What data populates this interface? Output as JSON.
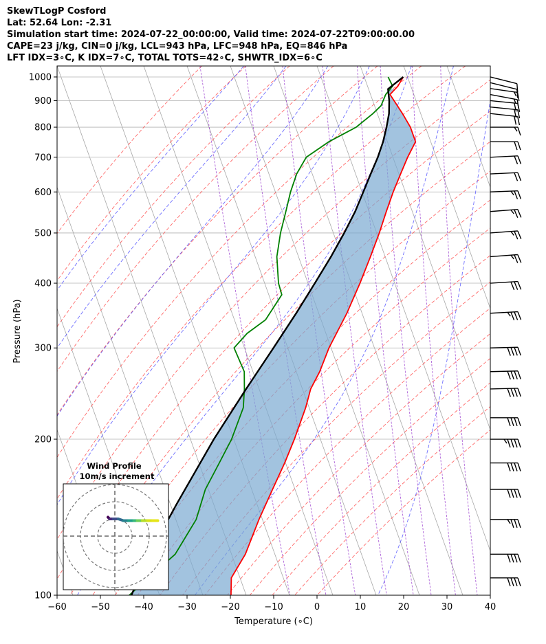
{
  "header": {
    "line1": "SkewTLogP Cosford",
    "line2": "Lat: 52.64   Lon: -2.31",
    "line3": "Simulation start time: 2024-07-22_00:00:00, Valid time: 2024-07-22T09:00:00.00",
    "line4": "CAPE=23 j/kg, CIN=0 j/kg, LCL=943 hPa, LFC=948 hPa, EQ=846 hPa",
    "line5": "LFT IDX=3∘C, K IDX=7∘C, TOTAL TOTS=42∘C, SHWTR_IDX=6∘C"
  },
  "chart_data": {
    "type": "line",
    "xlabel": "Temperature (∘C)",
    "ylabel": "Pressure (hPa)",
    "xlim": [
      -60,
      40
    ],
    "ylim": [
      1050,
      100
    ],
    "y_scale": "log",
    "x_ticks": [
      -60,
      -50,
      -40,
      -30,
      -20,
      -10,
      0,
      10,
      20,
      30,
      40
    ],
    "x_tick_labels": [
      "−60",
      "−50",
      "−40",
      "−30",
      "−20",
      "−10",
      "0",
      "10",
      "20",
      "30",
      "40"
    ],
    "y_ticks": [
      1000,
      900,
      800,
      700,
      600,
      500,
      400,
      300,
      200,
      100
    ],
    "y_tick_labels": [
      "1000",
      "900",
      "800",
      "700",
      "600",
      "500",
      "400",
      "300",
      "200",
      "100"
    ],
    "grid": true,
    "skew_lines_T0": [
      -100,
      -90,
      -80,
      -70,
      -60,
      -50,
      -40,
      -30,
      -20,
      -10,
      0,
      10,
      20,
      30,
      40
    ],
    "dry_adiabat_theta_C": [
      -30,
      -20,
      -10,
      0,
      10,
      20,
      30,
      40,
      50,
      60,
      70,
      80,
      90,
      100,
      110,
      120,
      130,
      140,
      150,
      160,
      170
    ],
    "moist_adiabat_T0_C": [
      -20,
      -10,
      0,
      10,
      20,
      30,
      40
    ],
    "mixing_ratio_gkg": [
      0.4,
      1,
      2,
      4,
      7,
      10,
      16,
      24
    ],
    "series": [
      {
        "name": "",
        "color": "#ff0000",
        "p": [
          1000,
          960,
          925,
          850,
          800,
          750,
          700,
          650,
          600,
          550,
          500,
          450,
          400,
          350,
          300,
          270,
          250,
          230,
          200,
          180,
          160,
          140,
          120,
          108,
          100
        ],
        "t": [
          19,
          17,
          14.5,
          15.8,
          16.5,
          16.5,
          13.4,
          10.4,
          7.2,
          4,
          0.6,
          -3.4,
          -8,
          -13.5,
          -20.5,
          -24.6,
          -28.1,
          -30.8,
          -36,
          -40.2,
          -45.2,
          -50.8,
          -56.8,
          -62,
          -63.5
        ]
      },
      {
        "name": "",
        "color": "#008000",
        "p": [
          1000,
          960,
          925,
          880,
          850,
          800,
          750,
          700,
          650,
          600,
          550,
          500,
          450,
          400,
          380,
          340,
          320,
          300,
          270,
          250,
          230,
          200,
          180,
          160,
          140,
          130,
          120,
          100
        ],
        "t": [
          15.5,
          15.8,
          13.5,
          11.5,
          9,
          4,
          -3.5,
          -10,
          -13.6,
          -16.5,
          -19.2,
          -22.2,
          -25,
          -26.8,
          -27,
          -32.8,
          -38.2,
          -42.4,
          -42,
          -43.4,
          -45.2,
          -50.5,
          -55.3,
          -60.7,
          -65.3,
          -69,
          -73,
          -87
        ]
      },
      {
        "name": "",
        "color": "#000000",
        "p": [
          1000,
          948,
          900,
          850,
          800,
          750,
          700,
          650,
          600,
          550,
          500,
          450,
          400,
          350,
          300,
          250,
          200,
          150,
          120,
          100
        ],
        "t": [
          19,
          14.5,
          13.8,
          12.7,
          11,
          9,
          6.5,
          3.5,
          0.3,
          -3.2,
          -7.5,
          -12.5,
          -18.4,
          -25.2,
          -33.3,
          -43,
          -54.6,
          -68.5,
          -79,
          -86.5
        ]
      }
    ],
    "wind_barbs": {
      "p": [
        1000,
        975,
        950,
        925,
        900,
        875,
        850,
        800,
        750,
        700,
        650,
        600,
        550,
        500,
        450,
        400,
        350,
        300,
        270,
        250,
        220,
        200,
        180,
        160,
        140,
        120,
        108
      ],
      "u_kt": [
        -8,
        -12,
        -14,
        -16,
        -20,
        -20,
        -18,
        -17,
        -19,
        -20,
        -22,
        -25,
        -26,
        -27,
        -27,
        -32,
        -36,
        -40,
        -40,
        -40,
        -42,
        -44,
        -40,
        -38,
        -36,
        -38,
        -40
      ],
      "v_kt": [
        2,
        3,
        2,
        3,
        2,
        2,
        2,
        0,
        0,
        -1,
        -1,
        -1,
        -2,
        -2,
        -2,
        -2,
        -2,
        -1,
        -1,
        -1,
        0,
        0,
        0,
        0,
        0,
        0,
        0
      ]
    },
    "wind_profile": {
      "title_line1": "Wind Profile",
      "title_line2": "10m/s increment",
      "rings_ms": [
        10,
        20,
        30
      ],
      "xlim": [
        -25,
        25
      ],
      "ylim": [
        -25,
        25
      ],
      "u_ms": [
        -4,
        -3,
        -1,
        2,
        5,
        8,
        11,
        13,
        16,
        19,
        22,
        25
      ],
      "v_ms": [
        11,
        10,
        10,
        10,
        9,
        9,
        9,
        9,
        9,
        9,
        9,
        9
      ]
    }
  }
}
